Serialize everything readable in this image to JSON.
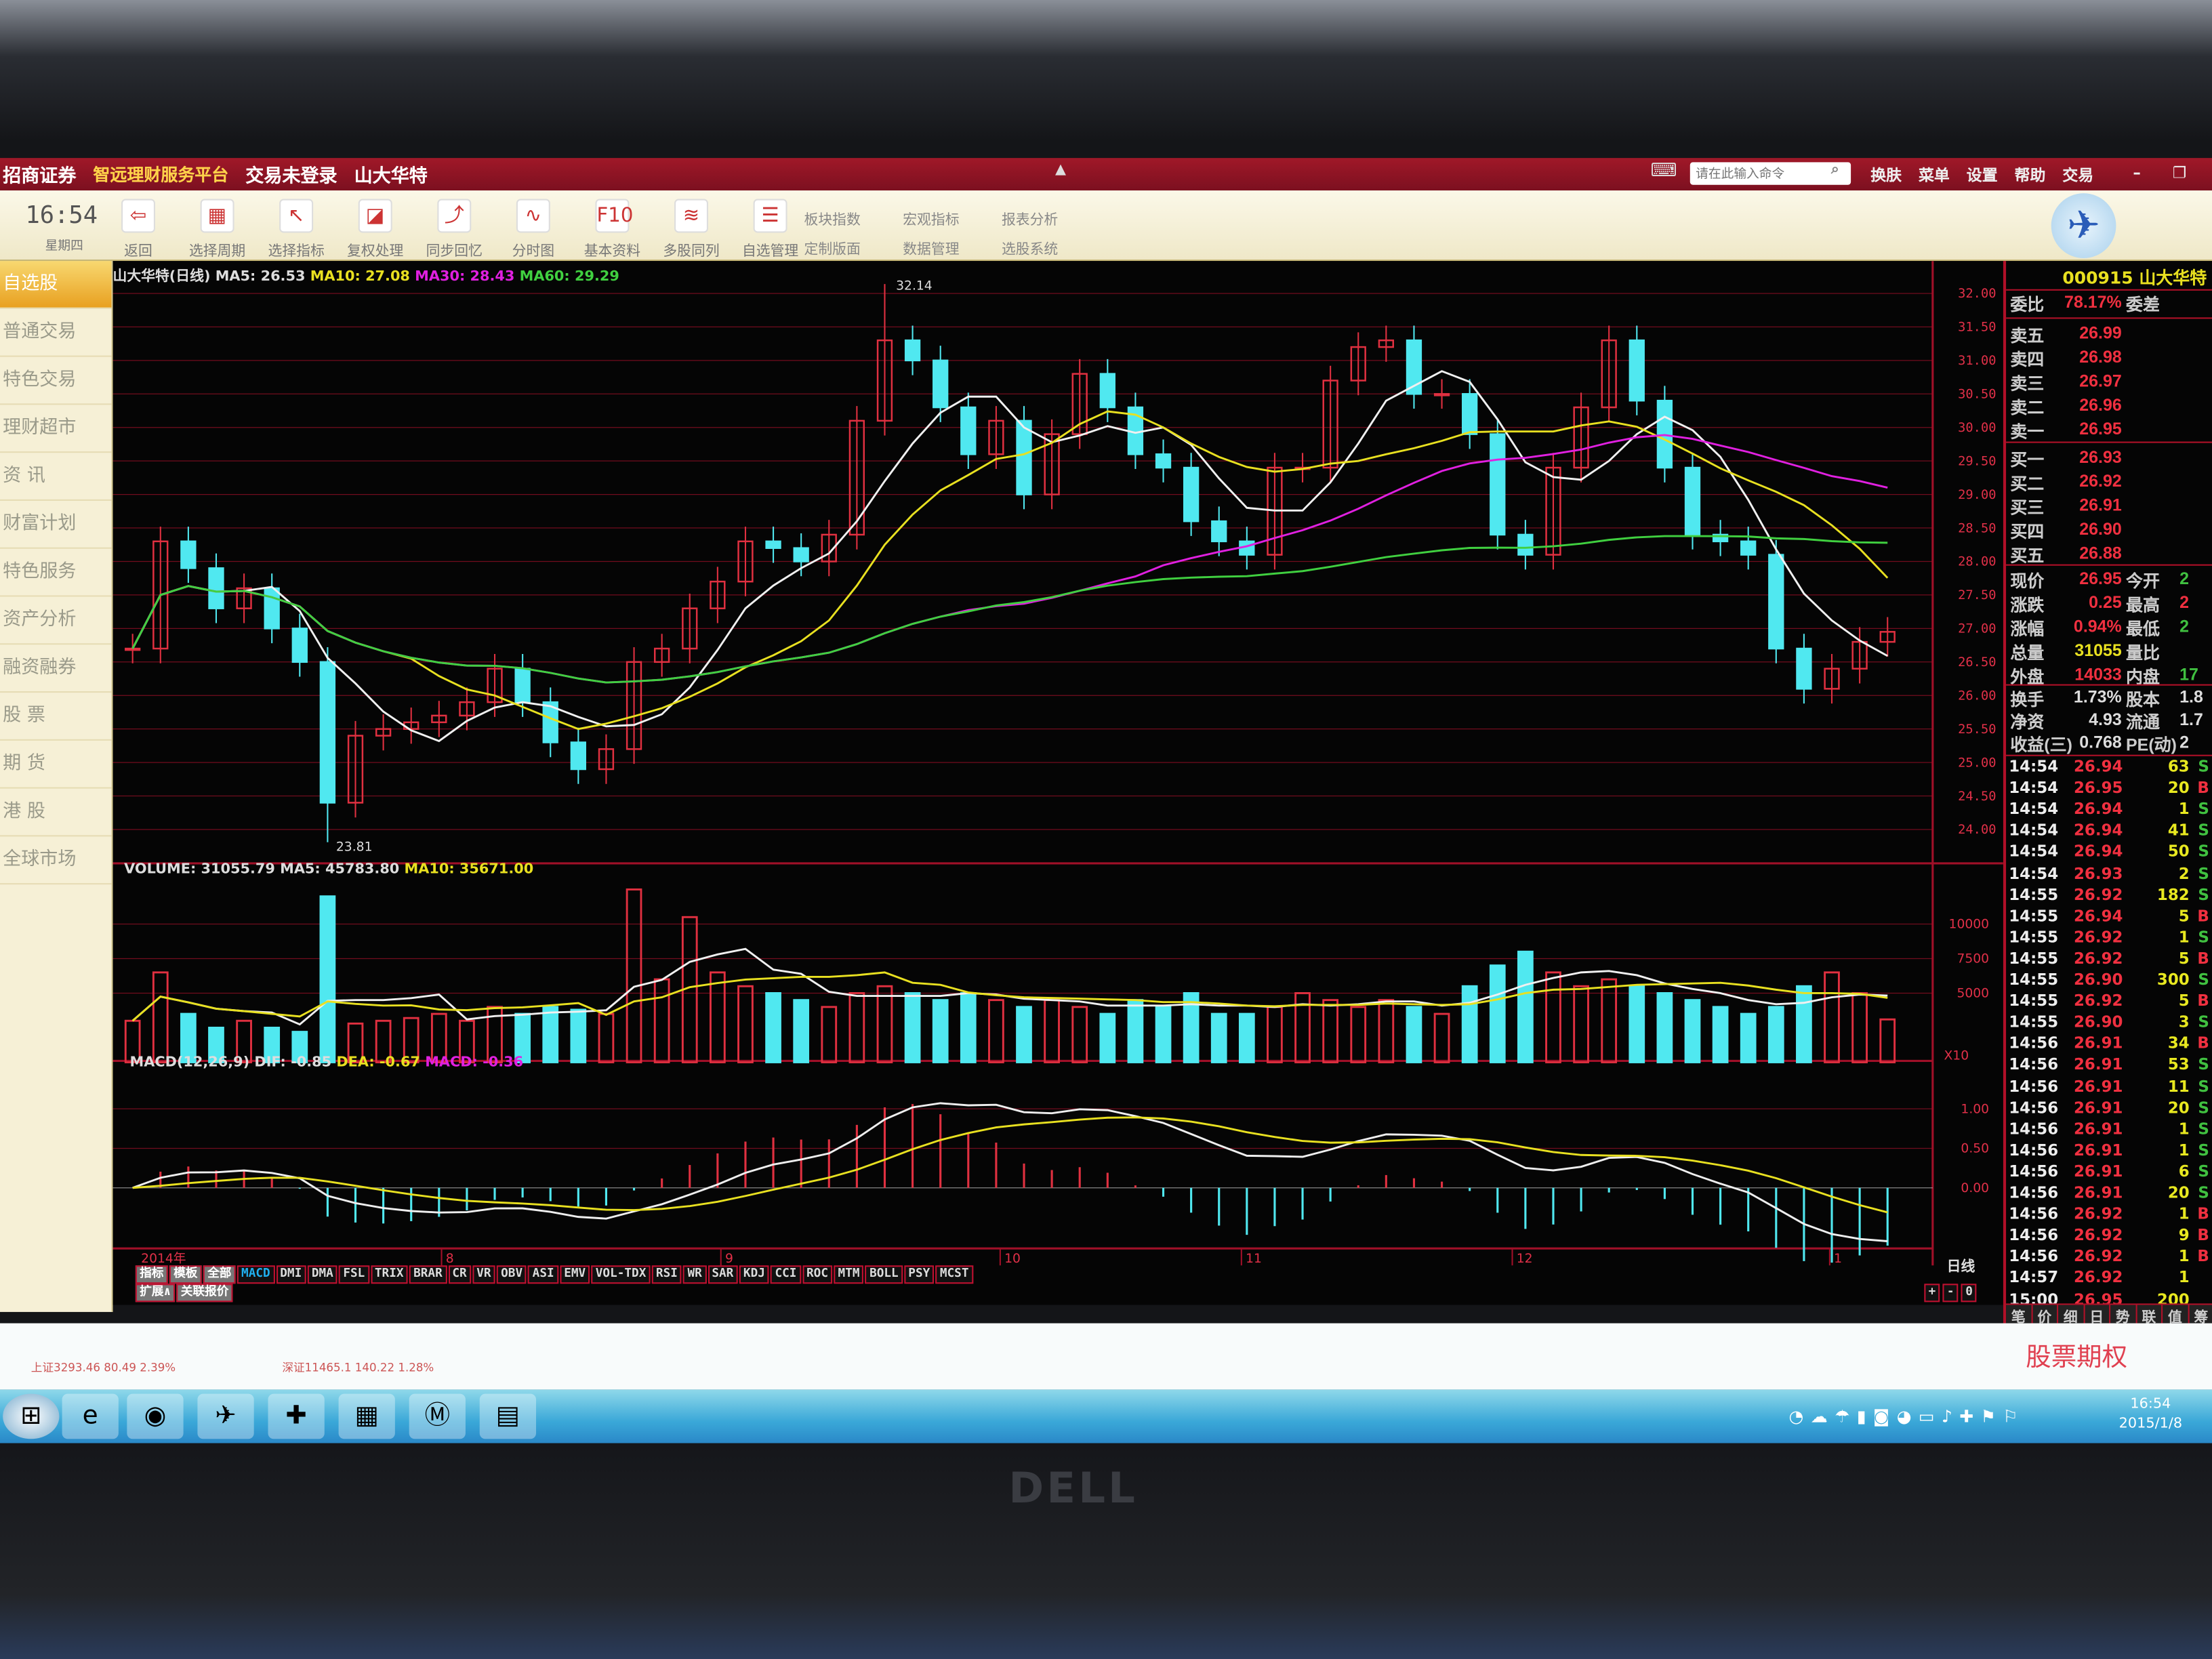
{
  "app": {
    "brand": "招商证券",
    "platform": "智远理财服务平台",
    "login_status": "交易未登录",
    "stock_title": "山大华特",
    "command_placeholder": "请在此输入命令",
    "menus": [
      "换肤",
      "菜单",
      "设置",
      "帮助",
      "交易"
    ]
  },
  "toolbar": {
    "clock": "16:54",
    "weekday": "星期四",
    "buttons": [
      "返回",
      "选择周期",
      "选择指标",
      "复权处理",
      "同步回忆",
      "分时图",
      "基本资料",
      "多股同列",
      "自选管理"
    ],
    "small_buttons": [
      "板块指数",
      "宏观指标",
      "报表分析",
      "定制版面",
      "数据管理",
      "选股系统"
    ]
  },
  "sidebar": {
    "items": [
      "自选股",
      "普通交易",
      "特色交易",
      "理财超市",
      "资  讯",
      "财富计划",
      "特色服务",
      "资产分析",
      "融资融券",
      "股  票",
      "期  货",
      "港  股",
      "全球市场"
    ],
    "active": 0
  },
  "chart_header": {
    "name": "山大华特(日线)",
    "ma5": "MA5: 26.53",
    "ma10": "MA10: 27.08",
    "ma30": "MA30: 28.43",
    "ma60": "MA60: 29.29"
  },
  "volume_header": {
    "volume": "VOLUME: 31055.79",
    "ma5": "MA5: 45783.80",
    "ma10": "MA10: 35671.00"
  },
  "macd_header": {
    "label": "MACD(12,26,9)",
    "dif": "DIF: -0.85",
    "dea": "DEA: -0.67",
    "macd": "MACD: -0.36"
  },
  "colors": {
    "up": "#e03040",
    "down": "#50e8f0",
    "ma5": "#f0f0f0",
    "ma10": "#e8e020",
    "ma30": "#e020e0",
    "ma60": "#40d040",
    "grid": "#a01028"
  },
  "chart_data": {
    "type": "candlestick",
    "price_axis": {
      "ticks": [
        "32.00",
        "31.50",
        "31.00",
        "30.50",
        "30.00",
        "29.50",
        "29.00",
        "28.50",
        "28.00",
        "27.50",
        "27.00",
        "26.50",
        "26.00",
        "25.50",
        "25.00",
        "24.50",
        "24.00"
      ],
      "range": [
        24,
        32
      ]
    },
    "close": [
      26.7,
      28.3,
      27.9,
      27.3,
      27.6,
      27.0,
      26.5,
      24.4,
      25.4,
      25.5,
      25.6,
      25.7,
      25.9,
      26.4,
      25.9,
      25.3,
      24.9,
      25.2,
      26.5,
      26.7,
      27.3,
      27.7,
      28.3,
      28.2,
      28.0,
      28.4,
      30.1,
      31.3,
      31.0,
      30.3,
      29.6,
      30.1,
      29.0,
      29.9,
      30.8,
      30.3,
      29.6,
      29.4,
      28.6,
      28.3,
      28.1,
      29.4,
      29.4,
      30.7,
      31.2,
      31.3,
      30.5,
      30.5,
      29.9,
      28.4,
      28.1,
      29.4,
      30.3,
      31.3,
      30.4,
      29.4,
      28.4,
      28.3,
      28.1,
      26.7,
      26.1,
      26.4,
      26.8,
      26.95
    ],
    "high_mark": {
      "index": 27,
      "value": "32.14"
    },
    "low_mark": {
      "index": 7,
      "value": "23.81"
    },
    "volume": [
      3000,
      6500,
      3500,
      2500,
      3000,
      2500,
      2200,
      12000,
      2800,
      3000,
      3200,
      3500,
      3000,
      4000,
      3500,
      4000,
      3800,
      3500,
      12500,
      6000,
      10500,
      6500,
      5500,
      5000,
      4500,
      4000,
      5000,
      5500,
      5000,
      4500,
      5000,
      4500,
      4000,
      4500,
      4000,
      3500,
      4500,
      4000,
      5000,
      3500,
      3500,
      4000,
      5000,
      4500,
      4000,
      4500,
      4000,
      3500,
      5500,
      7000,
      8000,
      6500,
      5500,
      6000,
      5500,
      5000,
      4500,
      4000,
      3500,
      4000,
      5500,
      6500,
      5000,
      3100
    ],
    "volume_axis": {
      "ticks": [
        "10000",
        "7500",
        "5000"
      ],
      "unit_label": "X10"
    },
    "macd_axis": {
      "ticks": [
        "1.00",
        "0.50",
        "0.00"
      ]
    },
    "date_labels": [
      "2014年",
      "8",
      "9",
      "10",
      "11",
      "12",
      "1"
    ],
    "period_label": "日线"
  },
  "indicators": {
    "row1": [
      "指标",
      "模板",
      "全部",
      "MACD",
      "DMI",
      "DMA",
      "FSL",
      "TRIX",
      "BRAR",
      "CR",
      "VR",
      "OBV",
      "ASI",
      "EMV",
      "VOL-TDX",
      "RSI",
      "WR",
      "SAR",
      "KDJ",
      "CCI",
      "ROC",
      "MTM",
      "BOLL",
      "PSY",
      "MCST"
    ],
    "selected": "MACD",
    "row2": [
      "扩展∧",
      "关联报价"
    ],
    "zoom_buttons": [
      "+",
      "-",
      "0"
    ]
  },
  "quote": {
    "code_name": "000915 山大华特",
    "weibi_label": "委比",
    "weibi": "78.17%",
    "weicha_label": "委差",
    "asks": [
      {
        "label": "卖五",
        "price": "26.99"
      },
      {
        "label": "卖四",
        "price": "26.98"
      },
      {
        "label": "卖三",
        "price": "26.97"
      },
      {
        "label": "卖二",
        "price": "26.96"
      },
      {
        "label": "卖一",
        "price": "26.95"
      }
    ],
    "bids": [
      {
        "label": "买一",
        "price": "26.93"
      },
      {
        "label": "买二",
        "price": "26.92"
      },
      {
        "label": "买三",
        "price": "26.91"
      },
      {
        "label": "买四",
        "price": "26.90"
      },
      {
        "label": "买五",
        "price": "26.88"
      }
    ],
    "stats": [
      {
        "l": "现价",
        "v": "26.95",
        "l2": "今开",
        "v2": "2"
      },
      {
        "l": "涨跌",
        "v": "0.25",
        "l2": "最高",
        "v2": "2"
      },
      {
        "l": "涨幅",
        "v": "0.94%",
        "l2": "最低",
        "v2": "2"
      },
      {
        "l": "总量",
        "v": "31055",
        "l2": "量比",
        "v2": ""
      },
      {
        "l": "外盘",
        "v": "14033",
        "l2": "内盘",
        "v2": "17"
      }
    ],
    "stats2": [
      {
        "l": "换手",
        "v": "1.73%",
        "l2": "股本",
        "v2": "1.8"
      },
      {
        "l": "净资",
        "v": "4.93",
        "l2": "流通",
        "v2": "1.7"
      },
      {
        "l": "收益(三)",
        "v": "0.768",
        "l2": "PE(动)",
        "v2": "2"
      }
    ],
    "trades": [
      [
        "14:54",
        "26.94",
        "63",
        "S"
      ],
      [
        "14:54",
        "26.95",
        "20",
        "B"
      ],
      [
        "14:54",
        "26.94",
        "1",
        "S"
      ],
      [
        "14:54",
        "26.94",
        "41",
        "S"
      ],
      [
        "14:54",
        "26.94",
        "50",
        "S"
      ],
      [
        "14:54",
        "26.93",
        "2",
        "S"
      ],
      [
        "14:55",
        "26.92",
        "182",
        "S"
      ],
      [
        "14:55",
        "26.94",
        "5",
        "B"
      ],
      [
        "14:55",
        "26.92",
        "1",
        "S"
      ],
      [
        "14:55",
        "26.92",
        "5",
        "B"
      ],
      [
        "14:55",
        "26.90",
        "300",
        "S"
      ],
      [
        "14:55",
        "26.92",
        "5",
        "B"
      ],
      [
        "14:55",
        "26.90",
        "3",
        "S"
      ],
      [
        "14:56",
        "26.91",
        "34",
        "B"
      ],
      [
        "14:56",
        "26.91",
        "53",
        "S"
      ],
      [
        "14:56",
        "26.91",
        "11",
        "S"
      ],
      [
        "14:56",
        "26.91",
        "20",
        "S"
      ],
      [
        "14:56",
        "26.91",
        "1",
        "S"
      ],
      [
        "14:56",
        "26.91",
        "1",
        "S"
      ],
      [
        "14:56",
        "26.91",
        "6",
        "S"
      ],
      [
        "14:56",
        "26.91",
        "20",
        "S"
      ],
      [
        "14:56",
        "26.92",
        "1",
        "B"
      ],
      [
        "14:56",
        "26.92",
        "9",
        "B"
      ],
      [
        "14:56",
        "26.92",
        "1",
        "B"
      ],
      [
        "14:57",
        "26.92",
        "1",
        ""
      ],
      [
        "15:00",
        "26.95",
        "200",
        ""
      ]
    ],
    "tabs": [
      "笔",
      "价",
      "细",
      "日",
      "势",
      "联",
      "值",
      "筹"
    ]
  },
  "status": {
    "sh": "上证3293.46  80.49  2.39%",
    "sz": "深证11465.1  140.22  1.28%",
    "promo": "股票期权"
  },
  "taskbar": {
    "time": "16:54",
    "date": "2015/1/8"
  },
  "monitor": {
    "brand": "DELL"
  }
}
